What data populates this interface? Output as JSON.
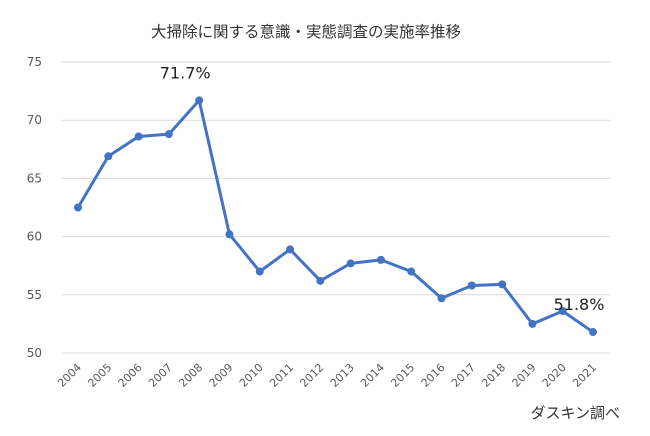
{
  "chart_data": {
    "type": "line",
    "title": "大掃除に関する意識・実態調査の実施率推移",
    "source": "ダスキン調べ",
    "xlabel": "",
    "ylabel": "",
    "ylim": [
      50,
      75
    ],
    "yticks": [
      50,
      55,
      60,
      65,
      70,
      75
    ],
    "grid": true,
    "legend": "none",
    "x": [
      "2004",
      "2005",
      "2006",
      "2007",
      "2008",
      "2009",
      "2010",
      "2011",
      "2012",
      "2013",
      "2014",
      "2015",
      "2016",
      "2017",
      "2018",
      "2019",
      "2020",
      "2021"
    ],
    "series": [
      {
        "color": "#4472c4",
        "values": [
          62.5,
          66.9,
          68.6,
          68.8,
          71.7,
          60.2,
          57.0,
          58.9,
          56.2,
          57.7,
          58.0,
          57.0,
          54.7,
          55.8,
          55.9,
          52.5,
          53.6,
          51.8
        ]
      }
    ],
    "annotations": [
      {
        "index": 4,
        "text": "71.7%"
      },
      {
        "index": 17,
        "text": "51.8%"
      }
    ]
  }
}
